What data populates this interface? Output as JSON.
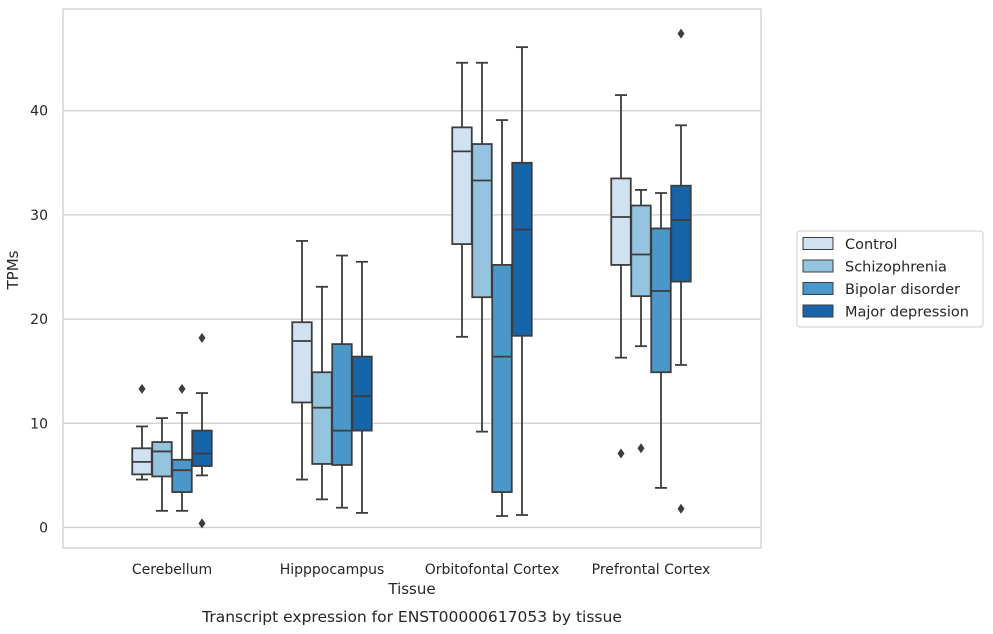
{
  "chart_data": {
    "type": "boxplot",
    "caption": "Transcript expression for ENST00000617053 by tissue",
    "xlabel": "Tissue",
    "ylabel": "TPMs",
    "ylim": [
      -2,
      50
    ],
    "yticks": [
      0,
      10,
      20,
      30,
      40
    ],
    "grid": "horizontal",
    "legend_position": "right",
    "categories": [
      "Cerebellum",
      "Hipppocampus",
      "Orbitofontal Cortex",
      "Prefrontal Cortex"
    ],
    "series": [
      {
        "name": "Control",
        "color": "#d0e1f2",
        "boxes": [
          {
            "whislo": 4.6,
            "q1": 5.1,
            "med": 6.3,
            "q3": 7.6,
            "whishi": 9.7,
            "fliers": [
              13.3
            ]
          },
          {
            "whislo": 4.6,
            "q1": 12.0,
            "med": 17.9,
            "q3": 19.7,
            "whishi": 27.5,
            "fliers": []
          },
          {
            "whislo": 18.3,
            "q1": 27.2,
            "med": 36.1,
            "q3": 38.4,
            "whishi": 44.6,
            "fliers": []
          },
          {
            "whislo": 16.3,
            "q1": 25.2,
            "med": 29.8,
            "q3": 33.5,
            "whishi": 41.5,
            "fliers": [
              7.1
            ]
          }
        ]
      },
      {
        "name": "Schizophrenia",
        "color": "#94c4df",
        "boxes": [
          {
            "whislo": 1.6,
            "q1": 4.9,
            "med": 7.3,
            "q3": 8.2,
            "whishi": 10.5,
            "fliers": []
          },
          {
            "whislo": 2.7,
            "q1": 6.1,
            "med": 11.5,
            "q3": 14.9,
            "whishi": 23.1,
            "fliers": []
          },
          {
            "whislo": 9.2,
            "q1": 22.1,
            "med": 33.3,
            "q3": 36.8,
            "whishi": 44.6,
            "fliers": []
          },
          {
            "whislo": 17.4,
            "q1": 22.2,
            "med": 26.2,
            "q3": 30.9,
            "whishi": 32.4,
            "fliers": [
              7.6
            ]
          }
        ]
      },
      {
        "name": "Bipolar disorder",
        "color": "#4a98c9",
        "boxes": [
          {
            "whislo": 1.6,
            "q1": 3.4,
            "med": 5.5,
            "q3": 6.5,
            "whishi": 11.0,
            "fliers": [
              13.3
            ]
          },
          {
            "whislo": 1.9,
            "q1": 6.0,
            "med": 9.3,
            "q3": 17.6,
            "whishi": 26.1,
            "fliers": []
          },
          {
            "whislo": 1.1,
            "q1": 3.4,
            "med": 16.4,
            "q3": 25.2,
            "whishi": 39.1,
            "fliers": []
          },
          {
            "whislo": 3.8,
            "q1": 14.9,
            "med": 22.7,
            "q3": 28.7,
            "whishi": 32.1,
            "fliers": []
          }
        ]
      },
      {
        "name": "Major depression",
        "color": "#1764ab",
        "boxes": [
          {
            "whislo": 5.0,
            "q1": 5.9,
            "med": 7.1,
            "q3": 9.3,
            "whishi": 12.9,
            "fliers": [
              18.2,
              0.4
            ]
          },
          {
            "whislo": 1.4,
            "q1": 9.3,
            "med": 12.6,
            "q3": 16.4,
            "whishi": 25.5,
            "fliers": []
          },
          {
            "whislo": 1.2,
            "q1": 18.4,
            "med": 28.6,
            "q3": 35.0,
            "whishi": 46.1,
            "fliers": []
          },
          {
            "whislo": 15.6,
            "q1": 23.6,
            "med": 29.5,
            "q3": 32.8,
            "whishi": 38.6,
            "fliers": [
              47.4,
              1.8
            ]
          }
        ]
      }
    ]
  }
}
